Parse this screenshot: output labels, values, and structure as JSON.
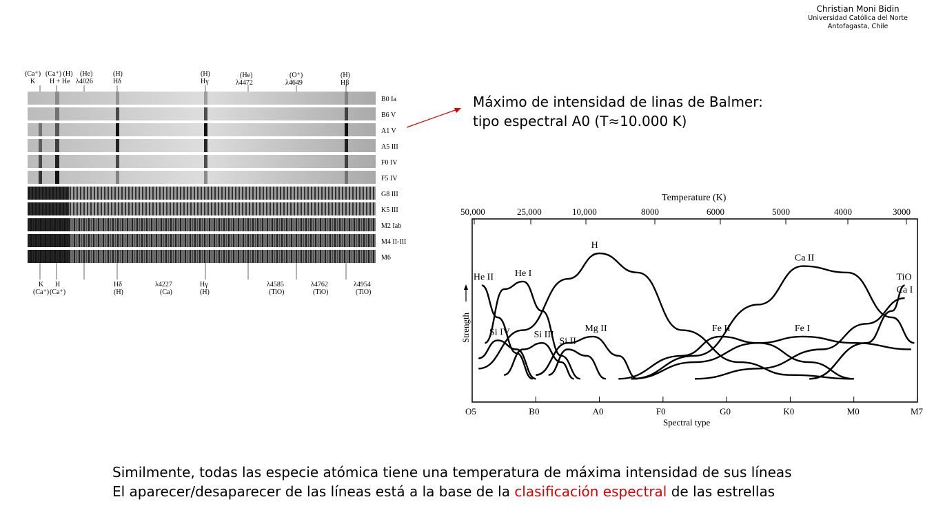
{
  "credit": {
    "name": "Christian Moni Bidin",
    "affiliation": "Universidad Católica del Norte",
    "location": "Antofagasta, Chile"
  },
  "callout": {
    "line1": "Máximo de intensidad de linas de Balmer:",
    "line2": "tipo espectral A0 (T≈10.000 K)"
  },
  "footer": {
    "line1": "Similmente, todas las especie atómica tiene una temperatura de máxima intensidad de sus líneas",
    "line2_before": "El aparecer/desaparecer de las líneas está a la base de la ",
    "line2_highlight": "clasificación espectral",
    "line2_after": " de las estrellas"
  },
  "spectra": {
    "top_labels": [
      {
        "id": "CaK",
        "l1": "(Ca⁺)",
        "l2": "K"
      },
      {
        "id": "CaH",
        "l1": "(Ca⁺) (H)",
        "l2": "H + He"
      },
      {
        "id": "He4026",
        "l1": "(He)",
        "l2": "λ4026"
      },
      {
        "id": "Hd",
        "l1": "(H)",
        "l2": "Hδ"
      },
      {
        "id": "Hg",
        "l1": "(H)",
        "l2": "Hγ"
      },
      {
        "id": "He4472",
        "l1": "(He)",
        "l2": "λ4472"
      },
      {
        "id": "O4649",
        "l1": "(O⁺)",
        "l2": "λ4649"
      },
      {
        "id": "Hb",
        "l1": "(H)",
        "l2": "Hβ"
      }
    ],
    "bottom_labels": [
      {
        "id": "K",
        "l1": "K",
        "l2": "(Ca⁺)"
      },
      {
        "id": "H",
        "l1": "H",
        "l2": "(Ca⁺)"
      },
      {
        "id": "Hd",
        "l1": "Hδ",
        "l2": "(H)"
      },
      {
        "id": "Ca4227",
        "l1": "λ4227",
        "l2": "(Ca)"
      },
      {
        "id": "Hg",
        "l1": "Hγ",
        "l2": "(H)"
      },
      {
        "id": "TiO4585",
        "l1": "λ4585",
        "l2": "(TiO)"
      },
      {
        "id": "TiO4762",
        "l1": "λ4762",
        "l2": "(TiO)"
      },
      {
        "id": "TiO4954",
        "l1": "λ4954",
        "l2": "(TiO)"
      }
    ],
    "rows": [
      "B0 Ia",
      "B6 V",
      "A1 V",
      "A5 III",
      "F0 IV",
      "F5 IV",
      "G8 III",
      "K5 III",
      "M2 Iab",
      "M4 II-III",
      "M6"
    ]
  },
  "chart_data": {
    "type": "line",
    "title": "Temperature (K)",
    "xlabel": "Spectral type",
    "ylabel": "Strength",
    "x_ticks": [
      "O5",
      "B0",
      "A0",
      "F0",
      "G0",
      "K0",
      "M0",
      "M7"
    ],
    "top_ticks": [
      "50,000",
      "25,000",
      "10,000",
      "8000",
      "6000",
      "5000",
      "4000",
      "3000"
    ],
    "series": [
      {
        "name": "He II",
        "points": [
          [
            0.15,
            0.75
          ],
          [
            0.4,
            0.5
          ],
          [
            0.7,
            0.22
          ],
          [
            0.95,
            0.02
          ]
        ]
      },
      {
        "name": "He I",
        "points": [
          [
            0.2,
            0.3
          ],
          [
            0.5,
            0.72
          ],
          [
            0.8,
            0.78
          ],
          [
            1.1,
            0.55
          ],
          [
            1.4,
            0.2
          ],
          [
            1.7,
            0.02
          ]
        ]
      },
      {
        "name": "Si IV",
        "points": [
          [
            0.1,
            0.18
          ],
          [
            0.4,
            0.32
          ],
          [
            0.7,
            0.25
          ],
          [
            1.0,
            0.02
          ]
        ]
      },
      {
        "name": "Si III",
        "points": [
          [
            0.5,
            0.05
          ],
          [
            0.8,
            0.25
          ],
          [
            1.1,
            0.3
          ],
          [
            1.4,
            0.15
          ],
          [
            1.6,
            0.02
          ]
        ]
      },
      {
        "name": "Si II",
        "points": [
          [
            1.2,
            0.05
          ],
          [
            1.5,
            0.25
          ],
          [
            1.8,
            0.2
          ],
          [
            2.1,
            0.02
          ]
        ]
      },
      {
        "name": "Mg II",
        "points": [
          [
            1.0,
            0.05
          ],
          [
            1.5,
            0.3
          ],
          [
            1.9,
            0.35
          ],
          [
            2.3,
            0.2
          ],
          [
            2.6,
            0.02
          ]
        ]
      },
      {
        "name": "H",
        "points": [
          [
            0.1,
            0.1
          ],
          [
            0.8,
            0.4
          ],
          [
            1.5,
            0.8
          ],
          [
            2.0,
            1.0
          ],
          [
            2.6,
            0.85
          ],
          [
            3.3,
            0.4
          ],
          [
            4.2,
            0.15
          ],
          [
            5.0,
            0.05
          ],
          [
            6.0,
            0.02
          ]
        ]
      },
      {
        "name": "Ca II",
        "points": [
          [
            2.5,
            0.02
          ],
          [
            3.5,
            0.2
          ],
          [
            4.5,
            0.6
          ],
          [
            5.2,
            0.9
          ],
          [
            5.9,
            0.85
          ],
          [
            6.6,
            0.5
          ],
          [
            6.95,
            0.3
          ]
        ]
      },
      {
        "name": "Fe II",
        "points": [
          [
            2.3,
            0.02
          ],
          [
            3.3,
            0.2
          ],
          [
            3.9,
            0.35
          ],
          [
            4.5,
            0.3
          ],
          [
            5.3,
            0.15
          ],
          [
            6.0,
            0.02
          ]
        ]
      },
      {
        "name": "Fe I",
        "points": [
          [
            2.5,
            0.02
          ],
          [
            3.5,
            0.15
          ],
          [
            4.5,
            0.3
          ],
          [
            5.2,
            0.35
          ],
          [
            6.0,
            0.3
          ],
          [
            6.9,
            0.25
          ]
        ]
      },
      {
        "name": "Ca I",
        "points": [
          [
            3.5,
            0.02
          ],
          [
            4.5,
            0.1
          ],
          [
            5.5,
            0.25
          ],
          [
            6.2,
            0.45
          ],
          [
            6.8,
            0.65
          ]
        ]
      },
      {
        "name": "TiO",
        "points": [
          [
            5.3,
            0.02
          ],
          [
            6.2,
            0.3
          ],
          [
            6.6,
            0.55
          ],
          [
            6.8,
            0.75
          ]
        ]
      }
    ]
  }
}
